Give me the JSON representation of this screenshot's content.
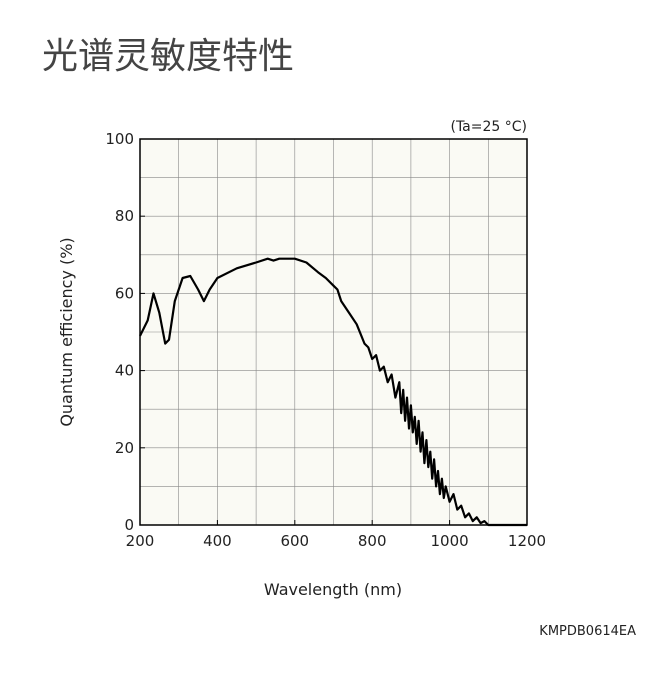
{
  "chart_data": {
    "type": "line",
    "title": "光谱灵敏度特性",
    "annotation": "(Ta=25 °C)",
    "x_label": "Wavelength (nm)",
    "y_label": "Quantum efficiency (%)",
    "footer": "KMPDB0614EA",
    "xlim": [
      200,
      1200
    ],
    "xticks": [
      200,
      400,
      600,
      800,
      1000,
      1200
    ],
    "x_grid": [
      200,
      300,
      400,
      500,
      600,
      700,
      800,
      900,
      1000,
      1100,
      1200
    ],
    "ylim": [
      0,
      100
    ],
    "yticks": [
      0,
      20,
      40,
      60,
      80,
      100
    ],
    "y_grid": [
      0,
      10,
      20,
      30,
      40,
      50,
      60,
      70,
      80,
      90,
      100
    ],
    "grid": true,
    "color": "#000000",
    "x": [
      200,
      220,
      235,
      250,
      265,
      275,
      290,
      310,
      330,
      350,
      365,
      380,
      400,
      450,
      500,
      530,
      545,
      560,
      600,
      630,
      660,
      680,
      700,
      710,
      720,
      740,
      760,
      780,
      790,
      800,
      810,
      820,
      830,
      840,
      850,
      860,
      870,
      875,
      880,
      885,
      890,
      895,
      900,
      905,
      910,
      915,
      920,
      925,
      930,
      935,
      940,
      945,
      950,
      955,
      960,
      965,
      970,
      975,
      980,
      985,
      990,
      1000,
      1010,
      1020,
      1030,
      1040,
      1050,
      1060,
      1070,
      1080,
      1090,
      1100,
      1150,
      1200
    ],
    "values": [
      49,
      53,
      60,
      55,
      47,
      48,
      58,
      64,
      64.5,
      61,
      58,
      61,
      64,
      66.5,
      68,
      69,
      68.5,
      69,
      69,
      68,
      65.5,
      64,
      62,
      61,
      58,
      55,
      52,
      47,
      46,
      43,
      44,
      40,
      41,
      37,
      39,
      33,
      37,
      29,
      35,
      27,
      33,
      25,
      31,
      24,
      28,
      21,
      27,
      19,
      24,
      16,
      22,
      15,
      19,
      12,
      17,
      10,
      14,
      8,
      12,
      7,
      10,
      6,
      8,
      4,
      5,
      2,
      3,
      1,
      2,
      0.5,
      1,
      0,
      0,
      0
    ]
  }
}
